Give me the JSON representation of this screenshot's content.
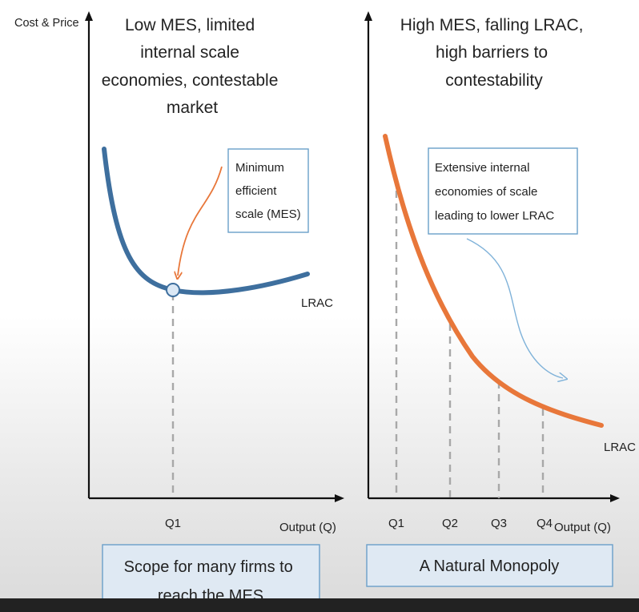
{
  "left_panel": {
    "y_axis_label": "Cost & Price",
    "title_lines": [
      "Low MES, limited",
      "internal scale",
      "economies, contestable",
      "market"
    ],
    "annotation_lines": [
      "Minimum",
      "efficient",
      "scale (MES)"
    ],
    "curve_label": "LRAC",
    "x_tick": "Q1",
    "x_axis_label": "Output (Q)",
    "caption_lines": [
      "Scope for many firms to",
      "reach the MES"
    ],
    "curve_color": "#3e6f9e",
    "arrow_color": "#e8773a"
  },
  "right_panel": {
    "title_lines": [
      "High MES, falling LRAC,",
      "high barriers to",
      "contestability"
    ],
    "annotation_lines": [
      "Extensive internal",
      "economies of scale",
      "leading to lower LRAC"
    ],
    "curve_label": "LRAC",
    "x_ticks": [
      "Q1",
      "Q2",
      "Q3",
      "Q4"
    ],
    "x_axis_label": "Output (Q)",
    "caption_lines": [
      "A Natural Monopoly"
    ],
    "curve_color": "#e8773a",
    "arrow_color": "#7fb2d9"
  },
  "colors": {
    "axis": "#111111",
    "guide_dash": "#a8a8a8",
    "box_border": "#6a9fc9",
    "caption_fill": "#dfe9f3"
  }
}
